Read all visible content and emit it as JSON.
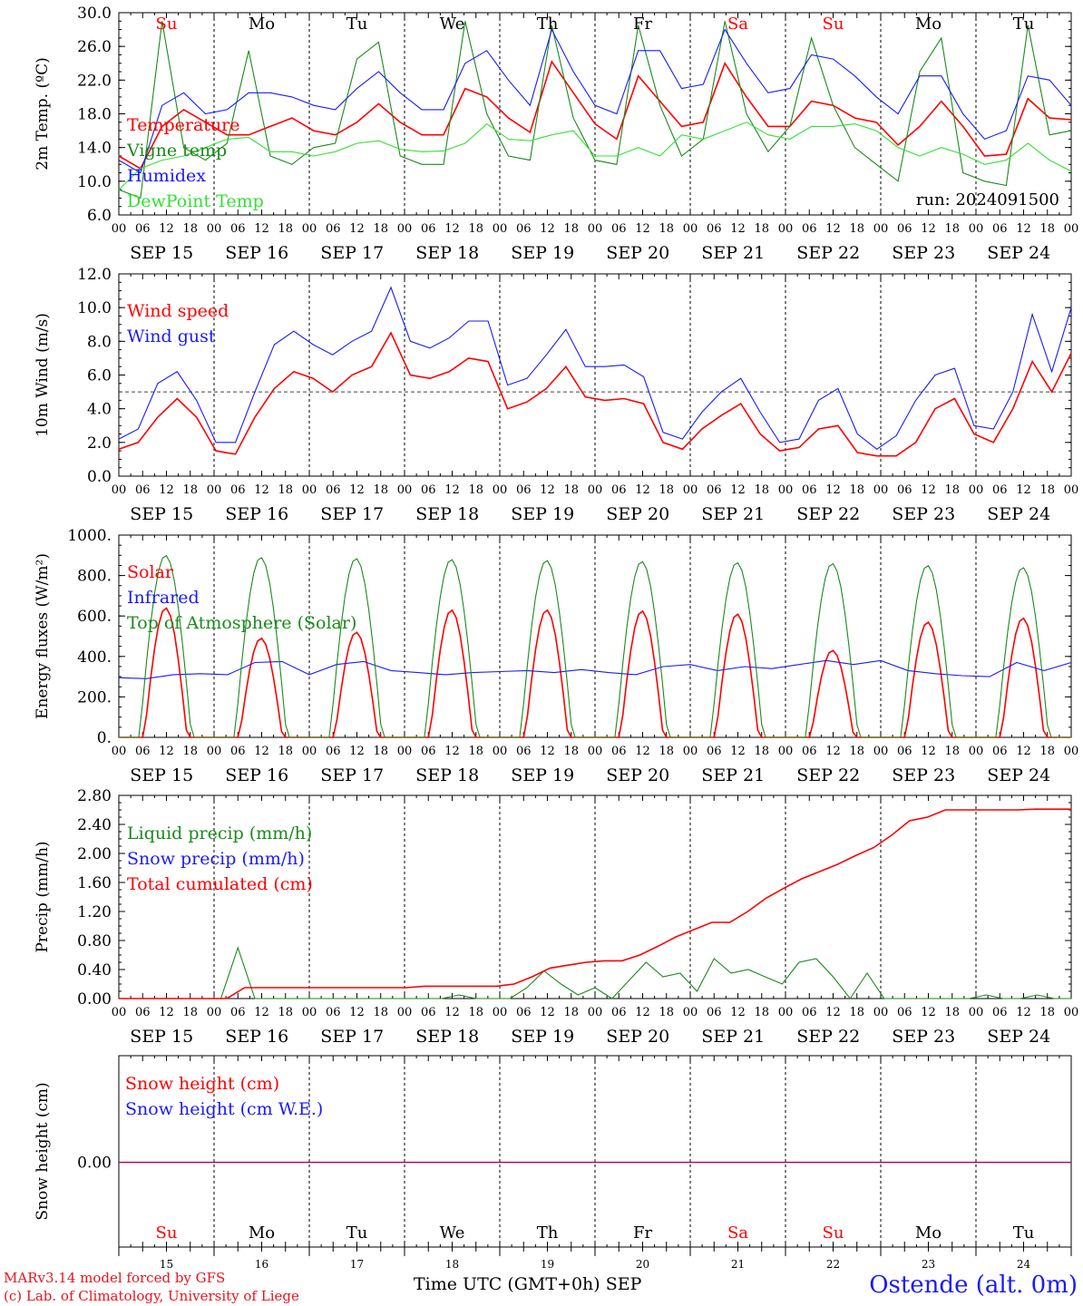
{
  "chart_data": [
    {
      "type": "line",
      "ylabel": "2m Temp. (ºC)",
      "ylim": [
        6.0,
        30.0
      ],
      "yticks": [
        "6.0",
        "10.0",
        "14.0",
        "18.0",
        "22.0",
        "26.0",
        "30.0"
      ],
      "run_label": "run: 2024091500",
      "x_hours_step": 6,
      "series": [
        {
          "name": "Temperature",
          "color": "#ff0000",
          "values": [
            13.0,
            11.5,
            16.5,
            18.5,
            17.0,
            15.5,
            15.5,
            16.5,
            17.5,
            16.0,
            15.5,
            17.0,
            19.2,
            17.0,
            15.5,
            15.5,
            21.0,
            20.0,
            17.5,
            15.8,
            24.2,
            20.5,
            16.8,
            15.0,
            22.5,
            19.5,
            16.5,
            17.0,
            24.0,
            20.0,
            16.5,
            16.5,
            19.5,
            19.0,
            17.5,
            17.0,
            14.3,
            16.5,
            19.5,
            16.5,
            13.0,
            13.2,
            19.8,
            17.5,
            17.3
          ]
        },
        {
          "name": "Vigne temp",
          "color": "#1a8a1a",
          "values": [
            9.0,
            8.0,
            29.0,
            14.0,
            12.5,
            14.5,
            25.5,
            13.0,
            12.0,
            14.0,
            14.5,
            24.5,
            26.5,
            13.0,
            12.0,
            12.0,
            29.0,
            18.0,
            13.0,
            12.5,
            28.5,
            17.5,
            12.5,
            12.0,
            28.5,
            19.0,
            13.0,
            15.0,
            29.0,
            18.0,
            13.5,
            16.5,
            27.0,
            19.0,
            14.0,
            12.0,
            10.0,
            23.0,
            27.0,
            11.0,
            10.0,
            9.5,
            28.5,
            15.5,
            16.0
          ]
        },
        {
          "name": "Humidex",
          "color": "#1a1aff",
          "values": [
            12.5,
            11.0,
            19.0,
            20.5,
            18.0,
            18.5,
            20.5,
            20.5,
            20.0,
            19.0,
            18.5,
            21.0,
            23.0,
            20.5,
            18.5,
            18.5,
            24.0,
            25.5,
            22.0,
            19.0,
            28.0,
            23.0,
            19.0,
            18.0,
            25.5,
            25.5,
            21.0,
            21.5,
            28.0,
            24.0,
            20.5,
            21.0,
            25.0,
            24.5,
            22.5,
            20.0,
            18.0,
            22.5,
            22.5,
            18.0,
            15.0,
            16.0,
            22.5,
            22.0,
            19.0
          ]
        },
        {
          "name": "DewPoint Temp",
          "color": "#33e033",
          "values": [
            9.0,
            11.5,
            12.5,
            13.0,
            14.0,
            15.0,
            15.2,
            13.5,
            13.5,
            13.0,
            13.5,
            14.5,
            14.8,
            13.8,
            13.5,
            13.6,
            14.5,
            16.8,
            15.0,
            14.8,
            15.5,
            16.0,
            13.0,
            13.0,
            14.0,
            13.0,
            15.5,
            15.0,
            16.0,
            17.0,
            15.5,
            15.0,
            16.5,
            16.5,
            16.8,
            16.0,
            14.0,
            13.0,
            14.0,
            13.2,
            12.0,
            12.5,
            14.5,
            12.5,
            11.2
          ]
        }
      ]
    },
    {
      "type": "line",
      "ylabel": "10m Wind (m/s)",
      "ylim": [
        0.0,
        12.0
      ],
      "yticks": [
        "0.0",
        "2.0",
        "4.0",
        "6.0",
        "8.0",
        "10.0",
        "12.0"
      ],
      "reference_line": 5.0,
      "x_hours_step": 6,
      "series": [
        {
          "name": "Wind speed",
          "color": "#ff0000",
          "values": [
            1.6,
            2.0,
            3.5,
            4.6,
            3.5,
            1.5,
            1.3,
            3.5,
            5.2,
            6.2,
            5.8,
            5.0,
            6.0,
            6.5,
            8.5,
            6.0,
            5.8,
            6.2,
            7.0,
            6.8,
            4.0,
            4.4,
            5.2,
            6.5,
            4.7,
            4.5,
            4.6,
            4.3,
            2.0,
            1.6,
            2.8,
            3.6,
            4.3,
            2.5,
            1.5,
            1.7,
            2.8,
            3.0,
            1.4,
            1.2,
            1.2,
            2.0,
            4.0,
            4.6,
            2.5,
            2.0,
            4.0,
            6.8,
            5.0,
            7.3
          ]
        },
        {
          "name": "Wind gust",
          "color": "#1a1aff",
          "values": [
            2.2,
            2.8,
            5.5,
            6.2,
            4.5,
            2.0,
            2.0,
            5.0,
            7.8,
            8.6,
            7.8,
            7.2,
            8.0,
            8.6,
            11.2,
            8.0,
            7.6,
            8.2,
            9.2,
            9.2,
            5.4,
            5.8,
            7.2,
            8.7,
            6.5,
            6.5,
            6.6,
            5.9,
            2.6,
            2.2,
            3.8,
            5.0,
            5.8,
            3.8,
            2.0,
            2.2,
            4.5,
            5.2,
            2.5,
            1.6,
            2.4,
            4.5,
            6.0,
            6.4,
            3.0,
            2.8,
            5.0,
            9.6,
            6.2,
            10.0
          ]
        }
      ]
    },
    {
      "type": "line",
      "ylabel": "Energy fluxes (W/m²)",
      "ylim": [
        0,
        1000
      ],
      "yticks": [
        "0.",
        "200.",
        "400.",
        "600.",
        "800.",
        "1000."
      ],
      "x_hours_step": 6,
      "series": [
        {
          "name": "Solar",
          "color": "#ff0000",
          "daily_peaks": [
            640,
            490,
            520,
            630,
            630,
            625,
            610,
            430,
            570,
            590
          ]
        },
        {
          "name": "Infrared",
          "color": "#1a1aff",
          "values": [
            295,
            290,
            310,
            315,
            310,
            370,
            375,
            310,
            360,
            375,
            330,
            320,
            310,
            320,
            325,
            330,
            320,
            335,
            320,
            310,
            350,
            360,
            330,
            350,
            340,
            360,
            380,
            360,
            380,
            330,
            315,
            305,
            300,
            370,
            330,
            370
          ]
        },
        {
          "name": "Top of Atmosphere (Solar)",
          "color": "#1a8a1a",
          "daily_peaks": [
            900,
            890,
            885,
            880,
            875,
            870,
            865,
            860,
            850,
            840
          ]
        }
      ]
    },
    {
      "type": "line",
      "ylabel": "Precip (mm/h)",
      "ylim": [
        0.0,
        2.8
      ],
      "yticks": [
        "0.00",
        "0.40",
        "0.80",
        "1.20",
        "1.60",
        "2.00",
        "2.40",
        "2.80"
      ],
      "x_hours_step": 6,
      "series": [
        {
          "name": "Liquid precip (mm/h)",
          "color": "#1a8a1a",
          "values": [
            0,
            0,
            0,
            0,
            0,
            0,
            0,
            0.7,
            0,
            0,
            0,
            0,
            0,
            0,
            0,
            0,
            0,
            0,
            0,
            0,
            0.05,
            0,
            0,
            0,
            0.15,
            0.38,
            0.2,
            0.05,
            0.15,
            0,
            0.25,
            0.5,
            0.3,
            0.35,
            0.1,
            0.55,
            0.35,
            0.4,
            0.3,
            0.2,
            0.5,
            0.55,
            0.3,
            0,
            0.35,
            0,
            0,
            0,
            0,
            0,
            0,
            0.05,
            0,
            0,
            0.05,
            0,
            0
          ]
        },
        {
          "name": "Snow precip (mm/h)",
          "color": "#1a1aff",
          "values": [
            0,
            0
          ]
        },
        {
          "name": "Total cumulated (cm)",
          "color": "#ff0000",
          "values": [
            0,
            0,
            0,
            0,
            0,
            0,
            0,
            0.15,
            0.15,
            0.15,
            0.15,
            0.15,
            0.15,
            0.15,
            0.15,
            0.15,
            0.15,
            0.17,
            0.17,
            0.17,
            0.17,
            0.17,
            0.2,
            0.3,
            0.42,
            0.46,
            0.5,
            0.52,
            0.52,
            0.6,
            0.72,
            0.85,
            0.95,
            1.05,
            1.05,
            1.2,
            1.38,
            1.52,
            1.65,
            1.75,
            1.85,
            1.97,
            2.08,
            2.25,
            2.45,
            2.5,
            2.6,
            2.6,
            2.6,
            2.6,
            2.6,
            2.61,
            2.61,
            2.61
          ]
        }
      ]
    },
    {
      "type": "line",
      "ylabel": "Snow height (cm)",
      "yticks": [
        "0.00"
      ],
      "x_hours_step": 6,
      "series": [
        {
          "name": "Snow height (cm)",
          "color": "#ff0000",
          "values": [
            0,
            0
          ]
        },
        {
          "name": "Snow height (cm W.E.)",
          "color": "#1a1aff",
          "values": [
            0,
            0
          ]
        }
      ]
    }
  ],
  "hour_ticks": [
    "00",
    "06",
    "12",
    "18"
  ],
  "last_hour_tick": "00",
  "dates": [
    "SEP 15",
    "SEP 16",
    "SEP 17",
    "SEP 18",
    "SEP 19",
    "SEP 20",
    "SEP 21",
    "SEP 22",
    "SEP 23",
    "SEP 24"
  ],
  "day_names": [
    {
      "label": "Su",
      "color": "#ff0000"
    },
    {
      "label": "Mo",
      "color": "#000000"
    },
    {
      "label": "Tu",
      "color": "#000000"
    },
    {
      "label": "We",
      "color": "#000000"
    },
    {
      "label": "Th",
      "color": "#000000"
    },
    {
      "label": "Fr",
      "color": "#000000"
    },
    {
      "label": "Sa",
      "color": "#ff0000"
    },
    {
      "label": "Su",
      "color": "#ff0000"
    },
    {
      "label": "Mo",
      "color": "#000000"
    },
    {
      "label": "Tu",
      "color": "#000000"
    }
  ],
  "day_numbers": [
    "15",
    "16",
    "17",
    "18",
    "19",
    "20",
    "21",
    "22",
    "23",
    "24"
  ],
  "footer": {
    "credit_line1": "MARv3.14 model forced by GFS",
    "credit_line2": "(c) Lab. of Climatology, University of Liege",
    "x_axis_title": "Time UTC (GMT+0h) SEP",
    "station": "Ostende (alt. 0m)"
  }
}
